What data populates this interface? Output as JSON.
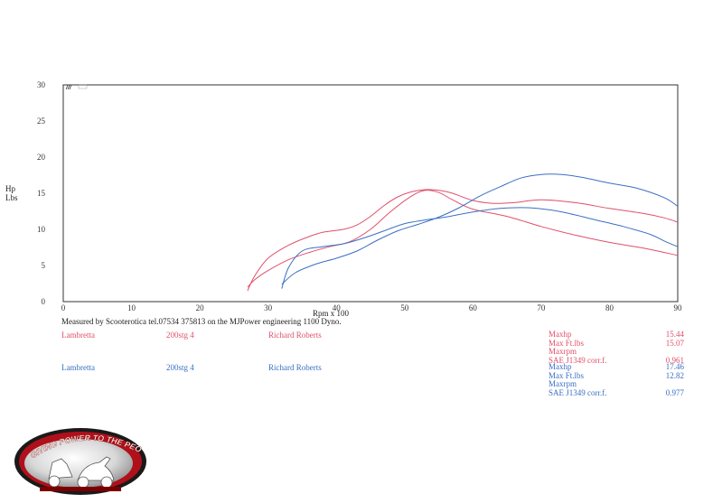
{
  "axes": {
    "ylabel_line1": "Hp",
    "ylabel_line2": "Lbs",
    "xlabel": "Rpm x 100"
  },
  "footer": {
    "measured_by": "Measured by Scooterotica tel.07534 375813 on the MJPower engineering 1100 Dyno."
  },
  "runs": [
    {
      "make": "Lambretta",
      "kit": "200stg 4",
      "rider": "Richard Roberts",
      "color": "#e0506a",
      "stats": [
        {
          "label": "Maxhp",
          "value": "15.44"
        },
        {
          "label": "Max Ft.lbs",
          "value": "15.07"
        },
        {
          "label": "Maxrpm",
          "value": ""
        },
        {
          "label": "SAE J1349 corr.f.",
          "value": "0.961"
        }
      ]
    },
    {
      "make": "Lambretta",
      "kit": "200stg 4",
      "rider": "Richard Roberts",
      "color": "#3a6fc4",
      "stats": [
        {
          "label": "Maxhp",
          "value": "17.46"
        },
        {
          "label": "Max Ft.lbs",
          "value": "12.82"
        },
        {
          "label": "Maxrpm",
          "value": ""
        },
        {
          "label": "SAE J1349 corr.f.",
          "value": "0.977"
        }
      ]
    }
  ],
  "logo": {
    "text": "GIVING POWER TO THE PEOPLE!"
  },
  "chart_data": {
    "type": "line",
    "xlabel": "Rpm x 100",
    "ylabel": "Hp Lbs",
    "xlim": [
      0,
      90
    ],
    "ylim": [
      0,
      30
    ],
    "xticks": [
      0,
      10,
      20,
      30,
      40,
      50,
      60,
      70,
      80,
      90
    ],
    "yticks": [
      0,
      5,
      10,
      15,
      20,
      25,
      30
    ],
    "grid": false,
    "series": [
      {
        "color": "#e0506a",
        "x": [
          27,
          28,
          30,
          33,
          36,
          38,
          41,
          43,
          45,
          47,
          49,
          51,
          53,
          55,
          57,
          60,
          63,
          66,
          70,
          75,
          80,
          85,
          88,
          90
        ],
        "y": [
          1.5,
          3.5,
          6.0,
          7.8,
          9.0,
          9.6,
          10.0,
          10.6,
          11.8,
          13.3,
          14.5,
          15.2,
          15.5,
          15.4,
          15.0,
          14.0,
          13.6,
          13.7,
          14.1,
          13.7,
          12.9,
          12.2,
          11.6,
          11.0
        ]
      },
      {
        "color": "#e0506a",
        "x": [
          27,
          28,
          30,
          33,
          36,
          39,
          42,
          45,
          48,
          51,
          53,
          55,
          57,
          60,
          65,
          70,
          75,
          80,
          85,
          90
        ],
        "y": [
          2.0,
          3.0,
          4.3,
          5.8,
          6.8,
          7.6,
          8.3,
          10.0,
          12.5,
          14.6,
          15.4,
          15.1,
          14.1,
          12.8,
          11.8,
          10.4,
          9.2,
          8.2,
          7.4,
          6.4
        ]
      },
      {
        "color": "#3a6fc4",
        "x": [
          32,
          33,
          35,
          38,
          41,
          44,
          47,
          50,
          53,
          56,
          60,
          64,
          68,
          72,
          75,
          78,
          82,
          86,
          88,
          90
        ],
        "y": [
          1.8,
          4.7,
          7.0,
          7.6,
          8.0,
          8.8,
          9.8,
          10.8,
          11.3,
          11.7,
          12.4,
          12.9,
          13.0,
          12.6,
          12.0,
          11.3,
          10.4,
          9.3,
          8.4,
          7.6
        ]
      },
      {
        "color": "#3a6fc4",
        "x": [
          32,
          34,
          37,
          40,
          43,
          46,
          49,
          52,
          55,
          58,
          61,
          64,
          67,
          70,
          73,
          76,
          80,
          84,
          88,
          90
        ],
        "y": [
          2.4,
          4.0,
          5.2,
          6.0,
          7.0,
          8.5,
          9.8,
          10.7,
          11.7,
          13.0,
          14.6,
          15.9,
          17.1,
          17.6,
          17.6,
          17.2,
          16.4,
          15.7,
          14.4,
          13.2
        ]
      }
    ]
  }
}
